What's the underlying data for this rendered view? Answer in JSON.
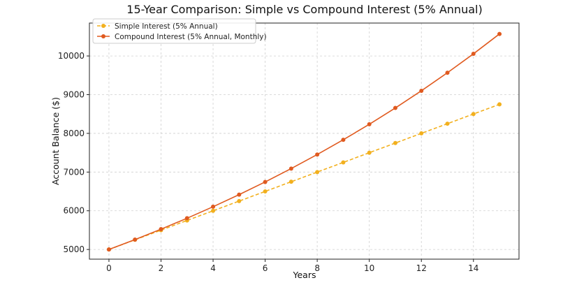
{
  "chart_data": {
    "type": "line",
    "title": "15-Year Comparison: Simple vs Compound Interest (5% Annual)",
    "xlabel": "Years",
    "ylabel": "Account Balance ($)",
    "x": [
      0,
      1,
      2,
      3,
      4,
      5,
      6,
      7,
      8,
      9,
      10,
      11,
      12,
      13,
      14,
      15
    ],
    "xlim": [
      -0.75,
      15.75
    ],
    "ylim": [
      4750,
      10850
    ],
    "x_ticks": [
      0,
      2,
      4,
      6,
      8,
      10,
      12,
      14
    ],
    "y_ticks": [
      5000,
      6000,
      7000,
      8000,
      9000,
      10000
    ],
    "grid": true,
    "legend_position": "upper-left",
    "series": [
      {
        "name": "Simple Interest (5% Annual)",
        "color": "#f2b01e",
        "line_style": "dashed",
        "values": [
          5000,
          5250,
          5500,
          5750,
          6000,
          6250,
          6500,
          6750,
          7000,
          7250,
          7500,
          7750,
          8000,
          8250,
          8500,
          8750
        ]
      },
      {
        "name": "Compound Interest (5% Annual, Monthly)",
        "color": "#e05a1f",
        "line_style": "solid",
        "values": [
          5000,
          5256,
          5525,
          5807,
          6105,
          6417,
          6745,
          7090,
          7453,
          7834,
          8235,
          8657,
          9100,
          9566,
          10055,
          10569
        ]
      }
    ]
  }
}
